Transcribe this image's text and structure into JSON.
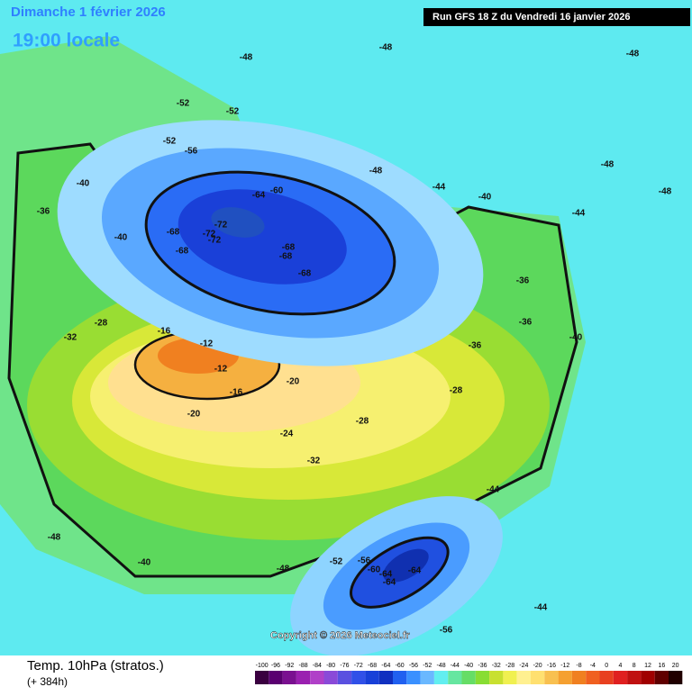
{
  "header": {
    "date": "Dimanche 1 février 2026",
    "time": "19:00 locale",
    "run": "Run GFS 18 Z du Vendredi 16 janvier 2026"
  },
  "copyright": "Copyright © 2026 Meteociel.fr",
  "footer": {
    "title": "Temp. 10hPa (stratos.)",
    "lead": "(+ 384h)"
  },
  "colorbar": {
    "ticks": [
      -100,
      -96,
      -92,
      -88,
      -84,
      -80,
      -76,
      -72,
      -68,
      -64,
      -60,
      -56,
      -52,
      -48,
      -44,
      -40,
      -36,
      -32,
      -28,
      -24,
      -20,
      -16,
      -12,
      -8,
      -4,
      0,
      4,
      8,
      12,
      16,
      20
    ],
    "colors": [
      "#3a0040",
      "#5a0070",
      "#7a1090",
      "#9a20b0",
      "#b040c8",
      "#8a4ad8",
      "#5a50e0",
      "#3050e8",
      "#1840d8",
      "#1030c0",
      "#2060f0",
      "#3a90ff",
      "#6ab8ff",
      "#62eef0",
      "#66e6a0",
      "#66dd66",
      "#88dd33",
      "#c8e030",
      "#f0f050",
      "#fff090",
      "#ffe070",
      "#f8c050",
      "#f5a030",
      "#f08020",
      "#f06020",
      "#e84020",
      "#e02020",
      "#c01010",
      "#a00000",
      "#600000",
      "#200000"
    ]
  },
  "map": {
    "labels": [
      -72,
      -72,
      -72,
      -68,
      -68,
      -68,
      -68,
      -68,
      -64,
      -60,
      -56,
      -52,
      -52,
      -52,
      -48,
      -48,
      -48,
      -48,
      -48,
      -48,
      -44,
      -44,
      -40,
      -40,
      -40,
      -40,
      -36,
      -36,
      -36,
      -36,
      -32,
      -32,
      -28,
      -28,
      -28,
      -20,
      -20,
      -16,
      -16,
      -12,
      -12,
      -24,
      -64,
      -64,
      -64,
      -60,
      -56,
      -56,
      -52,
      -44,
      -44,
      -40,
      -48,
      -48
    ]
  }
}
